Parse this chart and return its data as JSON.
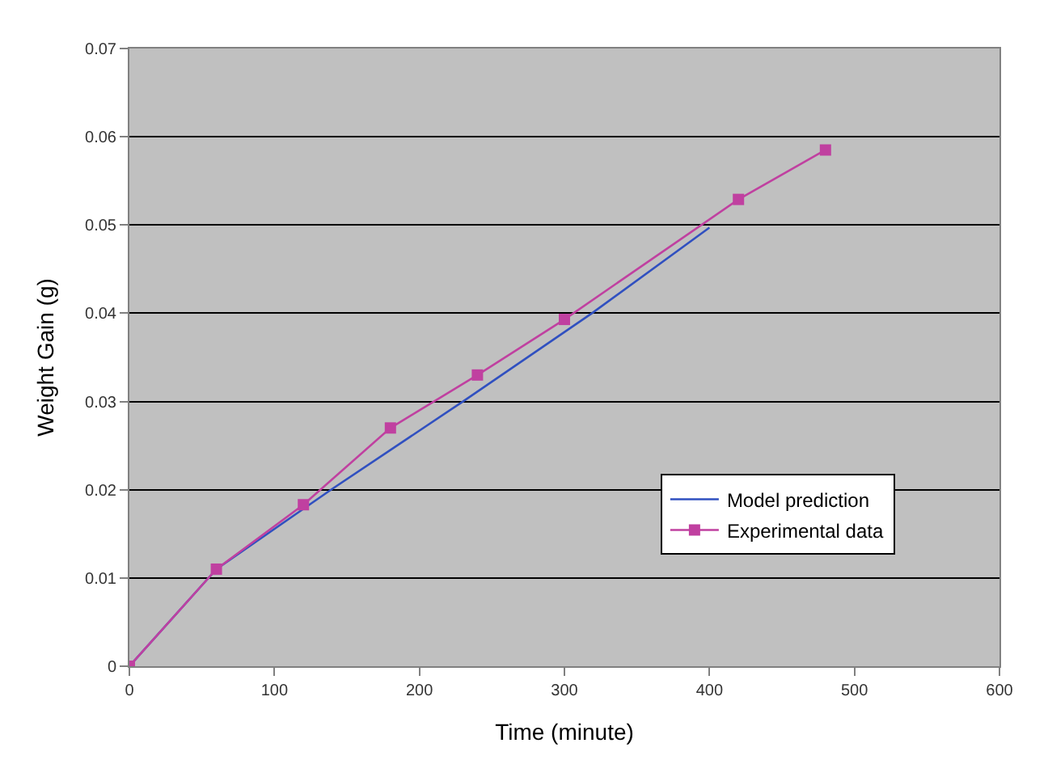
{
  "chart_data": {
    "type": "line",
    "xlabel": "Time (minute)",
    "ylabel": "Weight Gain (g)",
    "xlim": [
      0,
      600
    ],
    "xticks": [
      0,
      100,
      200,
      300,
      400,
      500,
      600
    ],
    "ylim": [
      0,
      0.07
    ],
    "yticks": [
      0,
      0.01,
      0.02,
      0.03,
      0.04,
      0.05,
      0.06,
      0.07
    ],
    "grid": "y",
    "legend": "bottom right",
    "series": [
      {
        "name": "Model prediction",
        "color": "#3050c0",
        "marker": "none",
        "x": [
          0,
          60,
          139,
          230,
          319,
          400
        ],
        "values": [
          0,
          0.011,
          0.02,
          0.03,
          0.04,
          0.0497
        ]
      },
      {
        "name": "Experimental data",
        "color": "#c040a0",
        "marker": "square",
        "x": [
          0,
          60,
          120,
          180,
          240,
          300,
          420,
          480
        ],
        "values": [
          0,
          0.011,
          0.0183,
          0.027,
          0.033,
          0.0393,
          0.0529,
          0.0585
        ]
      }
    ]
  }
}
